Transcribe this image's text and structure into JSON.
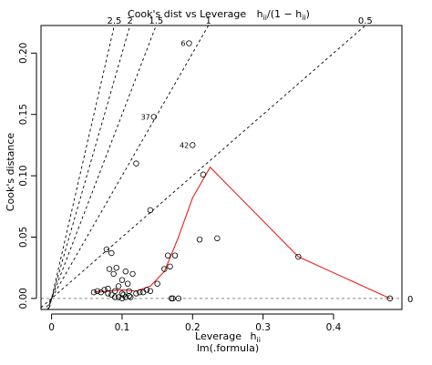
{
  "chart_data": {
    "type": "scatter",
    "title_main": "Cook's dist vs Leverage",
    "title_formula": "h",
    "title_formula_sub": "ii",
    "title_formula_rest": "/(1 − h",
    "title_formula_sub2": "ii",
    "title_formula_end": ")",
    "xlabel": "Leverage",
    "xlabel_symbol": "h",
    "xlabel_sub": "ii",
    "subtitle": "lm(.formula)",
    "ylabel": "Cook's distance",
    "xlim": [
      -0.015,
      0.497
    ],
    "ylim": [
      -0.009,
      0.2225
    ],
    "x_ticks": [
      0,
      0.1,
      0.2,
      0.3,
      0.4
    ],
    "x_tick_labels": [
      "0",
      "0.1",
      "0.2",
      "0.3",
      "0.4"
    ],
    "y_ticks": [
      0,
      0.05,
      0.1,
      0.15,
      0.2
    ],
    "y_tick_labels": [
      "0.00",
      "0.05",
      "0.10",
      "0.15",
      "0.20"
    ],
    "contours": [
      {
        "label": "2.5",
        "ratio": 2.5
      },
      {
        "label": "2",
        "ratio": 2
      },
      {
        "label": "1.5",
        "ratio": 1.5
      },
      {
        "label": "1",
        "ratio": 1
      },
      {
        "label": "0.5",
        "ratio": 0.5
      },
      {
        "label": "0",
        "ratio": 0
      }
    ],
    "x": [
      0.06,
      0.065,
      0.07,
      0.075,
      0.078,
      0.08,
      0.08,
      0.082,
      0.085,
      0.085,
      0.088,
      0.09,
      0.09,
      0.092,
      0.095,
      0.095,
      0.1,
      0.1,
      0.1,
      0.102,
      0.105,
      0.105,
      0.108,
      0.11,
      0.11,
      0.112,
      0.115,
      0.12,
      0.12,
      0.125,
      0.13,
      0.135,
      0.14,
      0.14,
      0.145,
      0.15,
      0.16,
      0.165,
      0.168,
      0.17,
      0.172,
      0.175,
      0.18,
      0.195,
      0.2,
      0.21,
      0.215,
      0.235,
      0.35,
      0.48
    ],
    "y": [
      0.005,
      0.006,
      0.005,
      0.007,
      0.04,
      0.004,
      0.008,
      0.024,
      0.003,
      0.037,
      0.02,
      0.001,
      0.006,
      0.025,
      0.01,
      0.001,
      0.004,
      0.015,
      0.0,
      0.003,
      0.022,
      0.001,
      0.012,
      0.002,
      0.006,
      0.001,
      0.02,
      0.004,
      0.11,
      0.005,
      0.005,
      0.007,
      0.072,
      0.006,
      0.148,
      0.012,
      0.024,
      0.035,
      0.026,
      0.0,
      0.0,
      0.035,
      0.0,
      0.208,
      0.125,
      0.048,
      0.101,
      0.049,
      0.034,
      0.0
    ],
    "point_labels": [
      {
        "label": "37",
        "x": 0.145,
        "y": 0.148
      },
      {
        "label": "42",
        "x": 0.2,
        "y": 0.125
      },
      {
        "label": "6",
        "x": 0.195,
        "y": 0.208
      }
    ],
    "smooth_line": {
      "x": [
        0.06,
        0.08,
        0.1,
        0.12,
        0.14,
        0.16,
        0.18,
        0.2,
        0.225,
        0.35,
        0.48
      ],
      "y": [
        0.005,
        0.006,
        0.007,
        0.006,
        0.01,
        0.022,
        0.05,
        0.082,
        0.107,
        0.034,
        0.0
      ]
    },
    "colors": {
      "points": "#000000",
      "smooth": "#e8211e",
      "contour": "#000000"
    },
    "grid": false
  }
}
